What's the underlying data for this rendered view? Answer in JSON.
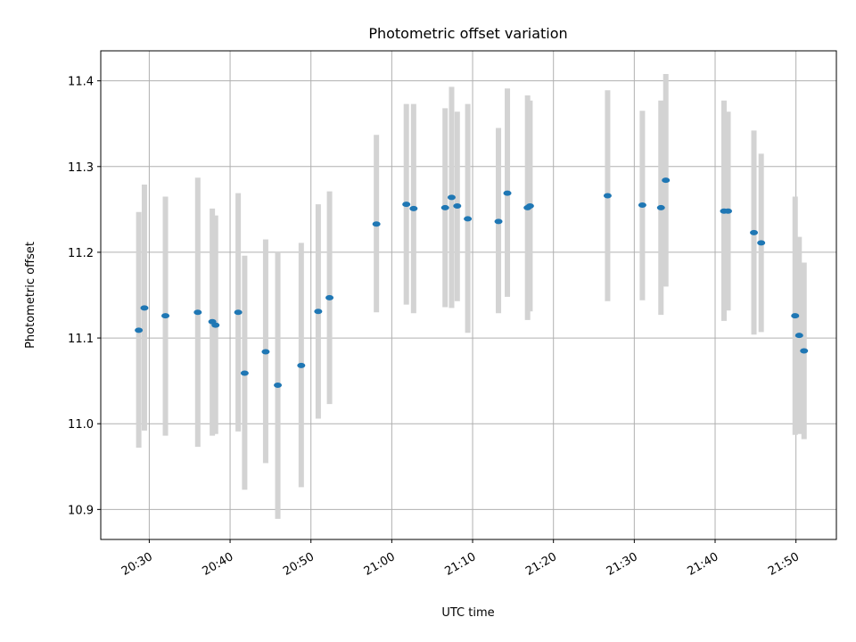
{
  "chart_data": {
    "type": "scatter",
    "title": "Photometric offset variation",
    "xlabel": "UTC time",
    "ylabel": "Photometric offset",
    "x_unit": "UTC time (HH:MM)",
    "xlim": [
      "20:24",
      "21:55"
    ],
    "ylim": [
      10.865,
      11.435
    ],
    "x_ticks": [
      "20:30",
      "20:40",
      "20:50",
      "21:00",
      "21:10",
      "21:20",
      "21:30",
      "21:40",
      "21:50"
    ],
    "y_ticks": [
      10.9,
      11.0,
      11.1,
      11.2,
      11.3,
      11.4
    ],
    "y_tick_labels": [
      "10.9",
      "11.0",
      "11.1",
      "11.2",
      "11.3",
      "11.4"
    ],
    "grid": true,
    "marker_color": "#1f77b4",
    "errorbar_color": "#d3d3d3",
    "points": [
      {
        "t": "20:28:42",
        "y": 11.109,
        "lo": 10.972,
        "hi": 11.247
      },
      {
        "t": "20:29:24",
        "y": 11.135,
        "lo": 10.992,
        "hi": 11.279
      },
      {
        "t": "20:32:00",
        "y": 11.126,
        "lo": 10.986,
        "hi": 11.265
      },
      {
        "t": "20:36:00",
        "y": 11.13,
        "lo": 10.973,
        "hi": 11.287
      },
      {
        "t": "20:37:48",
        "y": 11.119,
        "lo": 10.986,
        "hi": 11.251
      },
      {
        "t": "20:38:12",
        "y": 11.115,
        "lo": 10.988,
        "hi": 11.243
      },
      {
        "t": "20:41:00",
        "y": 11.13,
        "lo": 10.991,
        "hi": 11.269
      },
      {
        "t": "20:41:48",
        "y": 11.059,
        "lo": 10.923,
        "hi": 11.196
      },
      {
        "t": "20:44:24",
        "y": 11.084,
        "lo": 10.954,
        "hi": 11.215
      },
      {
        "t": "20:45:54",
        "y": 11.045,
        "lo": 10.889,
        "hi": 11.201
      },
      {
        "t": "20:48:48",
        "y": 11.068,
        "lo": 10.926,
        "hi": 11.211
      },
      {
        "t": "20:50:54",
        "y": 11.131,
        "lo": 11.006,
        "hi": 11.256
      },
      {
        "t": "20:52:18",
        "y": 11.147,
        "lo": 11.023,
        "hi": 11.271
      },
      {
        "t": "20:58:06",
        "y": 11.233,
        "lo": 11.13,
        "hi": 11.337
      },
      {
        "t": "21:01:48",
        "y": 11.256,
        "lo": 11.139,
        "hi": 11.373
      },
      {
        "t": "21:02:42",
        "y": 11.251,
        "lo": 11.129,
        "hi": 11.373
      },
      {
        "t": "21:06:36",
        "y": 11.252,
        "lo": 11.136,
        "hi": 11.368
      },
      {
        "t": "21:07:24",
        "y": 11.264,
        "lo": 11.135,
        "hi": 11.393
      },
      {
        "t": "21:08:06",
        "y": 11.254,
        "lo": 11.143,
        "hi": 11.364
      },
      {
        "t": "21:09:24",
        "y": 11.239,
        "lo": 11.106,
        "hi": 11.373
      },
      {
        "t": "21:13:12",
        "y": 11.236,
        "lo": 11.129,
        "hi": 11.345
      },
      {
        "t": "21:14:18",
        "y": 11.269,
        "lo": 11.148,
        "hi": 11.391
      },
      {
        "t": "21:16:48",
        "y": 11.252,
        "lo": 11.121,
        "hi": 11.383
      },
      {
        "t": "21:17:06",
        "y": 11.254,
        "lo": 11.131,
        "hi": 11.377
      },
      {
        "t": "21:26:42",
        "y": 11.266,
        "lo": 11.143,
        "hi": 11.389
      },
      {
        "t": "21:31:00",
        "y": 11.255,
        "lo": 11.144,
        "hi": 11.365
      },
      {
        "t": "21:33:18",
        "y": 11.252,
        "lo": 11.127,
        "hi": 11.377
      },
      {
        "t": "21:33:54",
        "y": 11.284,
        "lo": 11.16,
        "hi": 11.408
      },
      {
        "t": "21:41:06",
        "y": 11.248,
        "lo": 11.12,
        "hi": 11.377
      },
      {
        "t": "21:41:36",
        "y": 11.248,
        "lo": 11.132,
        "hi": 11.364
      },
      {
        "t": "21:44:48",
        "y": 11.223,
        "lo": 11.104,
        "hi": 11.342
      },
      {
        "t": "21:45:42",
        "y": 11.211,
        "lo": 11.107,
        "hi": 11.315
      },
      {
        "t": "21:49:54",
        "y": 11.126,
        "lo": 10.987,
        "hi": 11.265
      },
      {
        "t": "21:50:24",
        "y": 11.103,
        "lo": 10.988,
        "hi": 11.218
      },
      {
        "t": "21:51:00",
        "y": 11.085,
        "lo": 10.982,
        "hi": 11.188
      }
    ]
  }
}
